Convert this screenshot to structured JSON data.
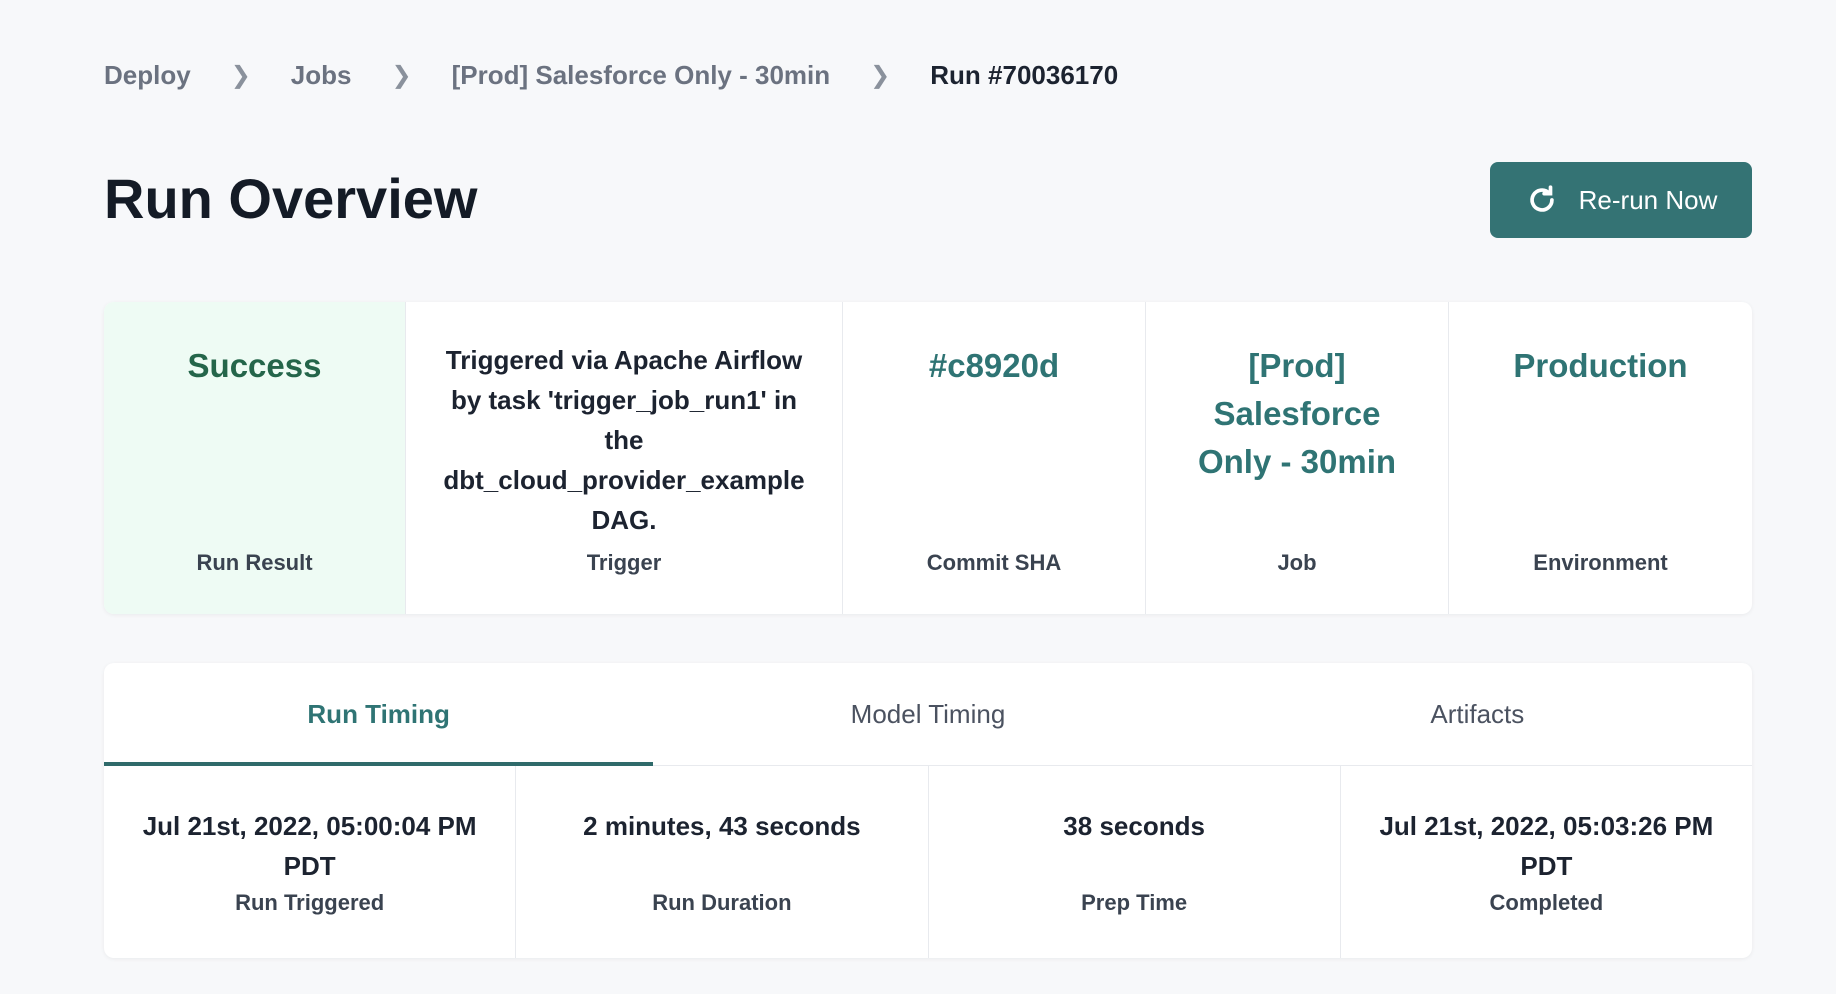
{
  "breadcrumb": {
    "items": [
      "Deploy",
      "Jobs",
      "[Prod] Salesforce Only - 30min"
    ],
    "current": "Run #70036170",
    "separator": ">"
  },
  "page_title": "Run Overview",
  "rerun_button": {
    "label": "Re-run Now",
    "icon": "refresh-icon"
  },
  "summary": {
    "run_result": {
      "value": "Success",
      "label": "Run Result",
      "bg": "#eefbf4",
      "color": "#24654a"
    },
    "trigger": {
      "value": "Triggered via Apache Airflow by task 'trigger_job_run1' in the dbt_cloud_provider_example DAG.",
      "label": "Trigger"
    },
    "commit": {
      "value": "#c8920d",
      "label": "Commit SHA"
    },
    "job": {
      "value": "[Prod] Salesforce Only - 30min",
      "label": "Job"
    },
    "environment": {
      "value": "Production",
      "label": "Environment"
    }
  },
  "tabs": [
    {
      "label": "Run Timing",
      "active": true
    },
    {
      "label": "Model Timing"
    },
    {
      "label": "Artifacts"
    }
  ],
  "timing": [
    {
      "value": "Jul 21st, 2022, 05:00:04 PM PDT",
      "label": "Run Triggered"
    },
    {
      "value": "2 minutes, 43 seconds",
      "label": "Run Duration"
    },
    {
      "value": "38 seconds",
      "label": "Prep Time"
    },
    {
      "value": "Jul 21st, 2022, 05:03:26 PM PDT",
      "label": "Completed"
    }
  ],
  "colors": {
    "accent": "#347374"
  }
}
